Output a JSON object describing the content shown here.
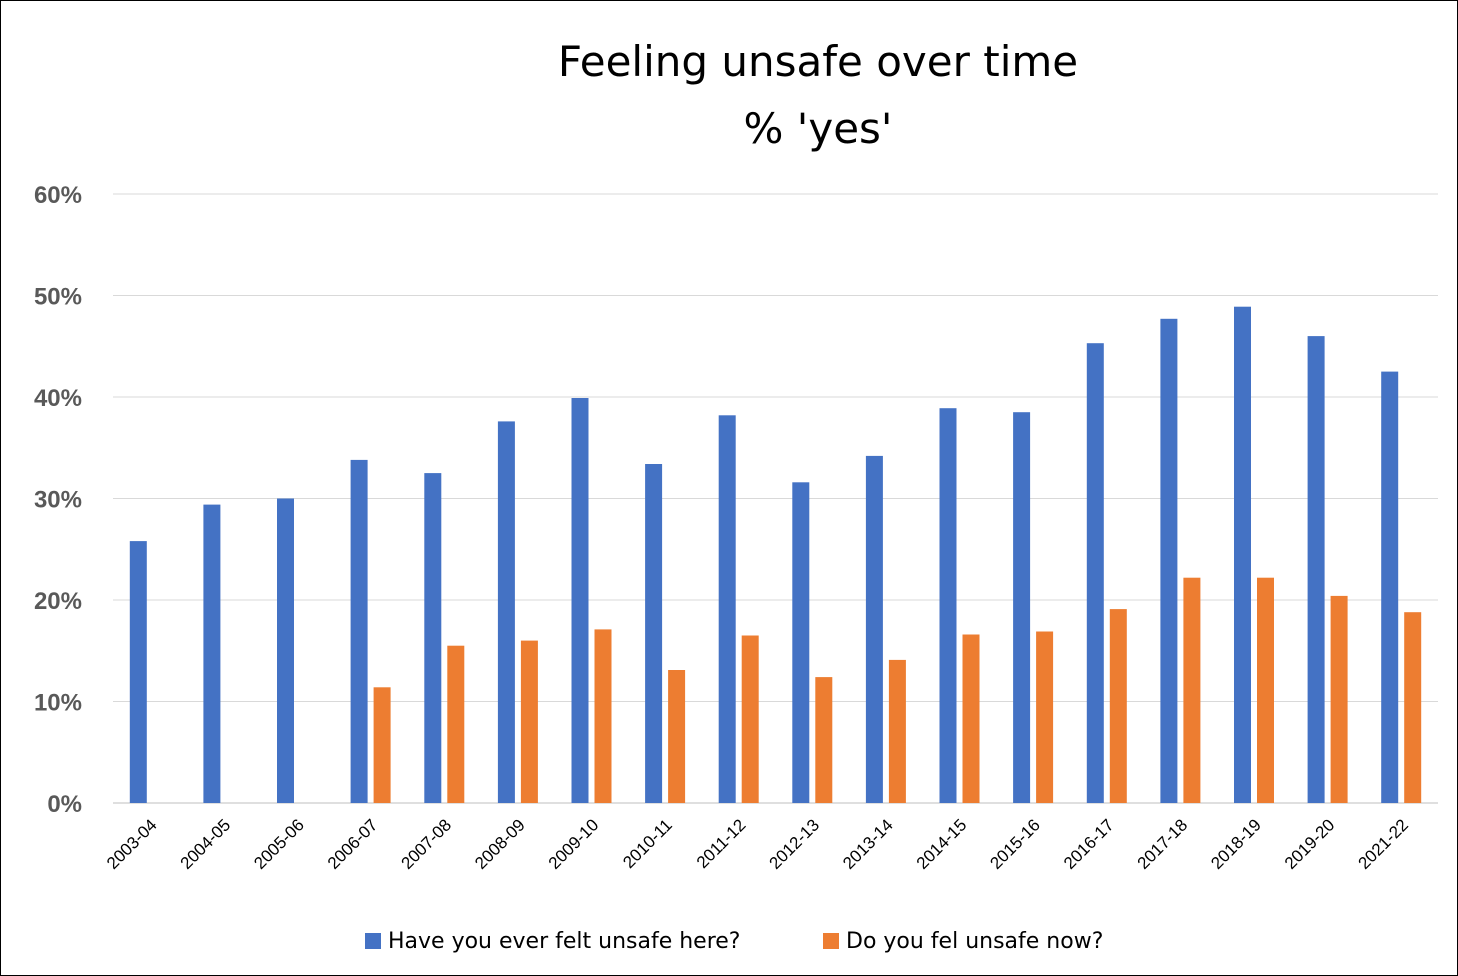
{
  "chart_data": {
    "type": "bar",
    "title_lines": [
      "Feeling unsafe over time",
      "% 'yes'"
    ],
    "categories": [
      "2003-04",
      "2004-05",
      "2005-06",
      "2006-07",
      "2007-08",
      "2008-09",
      "2009-10",
      "2010-11",
      "2011-12",
      "2012-13",
      "2013-14",
      "2014-15",
      "2015-16",
      "2016-17",
      "2017-18",
      "2018-19",
      "2019-20",
      "2021-22"
    ],
    "series": [
      {
        "name": "Have you ever felt unsafe here?",
        "color": "#4472C4",
        "values": [
          25.8,
          29.4,
          30.0,
          33.8,
          32.5,
          37.6,
          39.9,
          33.4,
          38.2,
          31.6,
          34.2,
          38.9,
          38.5,
          45.3,
          47.7,
          48.9,
          46.0,
          42.5
        ]
      },
      {
        "name": "Do you fel unsafe now?",
        "color": "#ED7D31",
        "values": [
          null,
          null,
          null,
          11.4,
          15.5,
          16.0,
          17.1,
          13.1,
          16.5,
          12.4,
          14.1,
          16.6,
          16.9,
          19.1,
          22.2,
          22.2,
          20.4,
          18.8
        ]
      }
    ],
    "yticks": [
      "0%",
      "10%",
      "20%",
      "30%",
      "40%",
      "50%",
      "60%"
    ],
    "ylim": [
      0,
      60
    ],
    "grid": true,
    "legend_position": "bottom"
  }
}
